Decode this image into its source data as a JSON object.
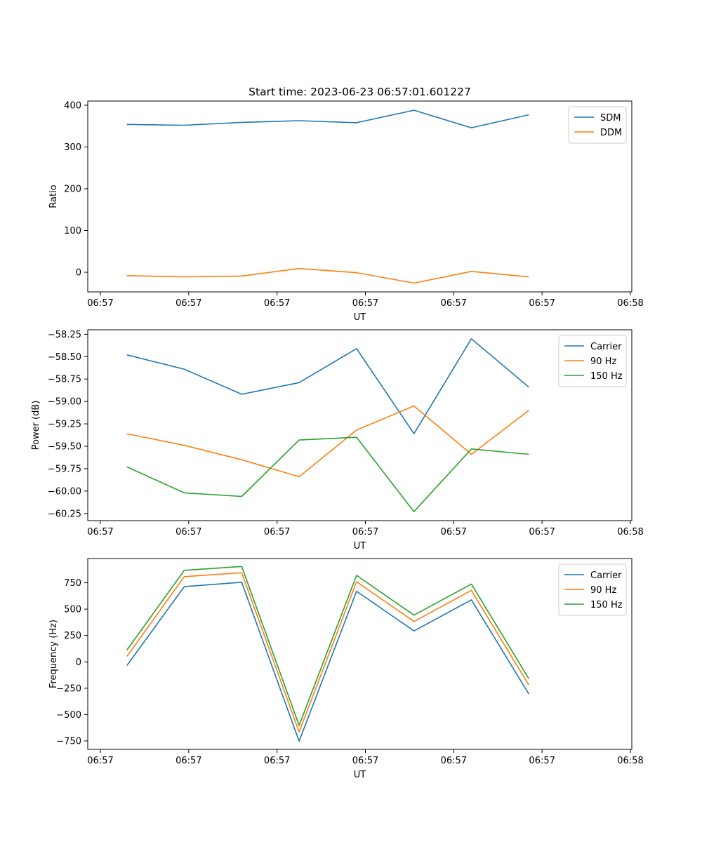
{
  "figure": {
    "title": "Start time: 2023-06-23 06:57:01.601227"
  },
  "colors": {
    "blue": "#1f77b4",
    "orange": "#ff7f0e",
    "green": "#2ca02c"
  },
  "chart_data": [
    {
      "id": "ratio",
      "type": "line",
      "title": "Start time: 2023-06-23 06:57:01.601227",
      "xlabel": "UT",
      "ylabel": "Ratio",
      "xticks": [
        "06:57",
        "06:57",
        "06:57",
        "06:57",
        "06:57",
        "06:57",
        "06:58"
      ],
      "yticks": [
        400,
        300,
        200,
        100,
        0
      ],
      "ylim": [
        -47,
        410
      ],
      "legend_position": "upper right",
      "x": [
        0.3,
        0.95,
        1.6,
        2.25,
        2.9,
        3.55,
        4.2,
        4.85
      ],
      "series": [
        {
          "name": "SDM",
          "color": "#1f77b4",
          "values": [
            354,
            352,
            359,
            363,
            358,
            388,
            346,
            377
          ]
        },
        {
          "name": "DDM",
          "color": "#ff7f0e",
          "values": [
            -8,
            -11,
            -9,
            9,
            -1,
            -26,
            2,
            -11
          ]
        }
      ]
    },
    {
      "id": "power",
      "type": "line",
      "xlabel": "UT",
      "ylabel": "Power (dB)",
      "xticks": [
        "06:57",
        "06:57",
        "06:57",
        "06:57",
        "06:57",
        "06:57",
        "06:58"
      ],
      "yticks": [
        "−58.25",
        "−58.50",
        "−58.75",
        "−59.00",
        "−59.25",
        "−59.50",
        "−59.75",
        "−60.00",
        "−60.25"
      ],
      "ylim": [
        -60.33,
        -58.2
      ],
      "legend_position": "upper right",
      "x": [
        0.3,
        0.95,
        1.6,
        2.25,
        2.9,
        3.55,
        4.2,
        4.85
      ],
      "series": [
        {
          "name": "Carrier",
          "color": "#1f77b4",
          "values": [
            -58.48,
            -58.64,
            -58.92,
            -58.79,
            -58.41,
            -59.36,
            -58.3,
            -58.84
          ]
        },
        {
          "name": "90 Hz",
          "color": "#ff7f0e",
          "values": [
            -59.36,
            -59.49,
            -59.65,
            -59.84,
            -59.32,
            -59.05,
            -59.59,
            -59.1
          ]
        },
        {
          "name": "150 Hz",
          "color": "#2ca02c",
          "values": [
            -59.73,
            -60.02,
            -60.06,
            -59.43,
            -59.4,
            -60.23,
            -59.53,
            -59.59
          ]
        }
      ]
    },
    {
      "id": "frequency",
      "type": "line",
      "xlabel": "UT",
      "ylabel": "Frequency (Hz)",
      "xticks": [
        "06:57",
        "06:57",
        "06:57",
        "06:57",
        "06:57",
        "06:57",
        "06:58"
      ],
      "yticks": [
        "750",
        "500",
        "250",
        "0",
        "−250",
        "−500",
        "−750"
      ],
      "ylim": [
        -830,
        980
      ],
      "legend_position": "upper right",
      "x": [
        0.3,
        0.95,
        1.6,
        2.25,
        2.9,
        3.55,
        4.2,
        4.85
      ],
      "series": [
        {
          "name": "Carrier",
          "color": "#1f77b4",
          "values": [
            -35,
            713,
            755,
            -752,
            670,
            293,
            588,
            -305
          ]
        },
        {
          "name": "90 Hz",
          "color": "#ff7f0e",
          "values": [
            52,
            808,
            845,
            -664,
            760,
            383,
            678,
            -220
          ]
        },
        {
          "name": "150 Hz",
          "color": "#2ca02c",
          "values": [
            112,
            868,
            905,
            -603,
            820,
            443,
            738,
            -160
          ]
        }
      ]
    }
  ]
}
